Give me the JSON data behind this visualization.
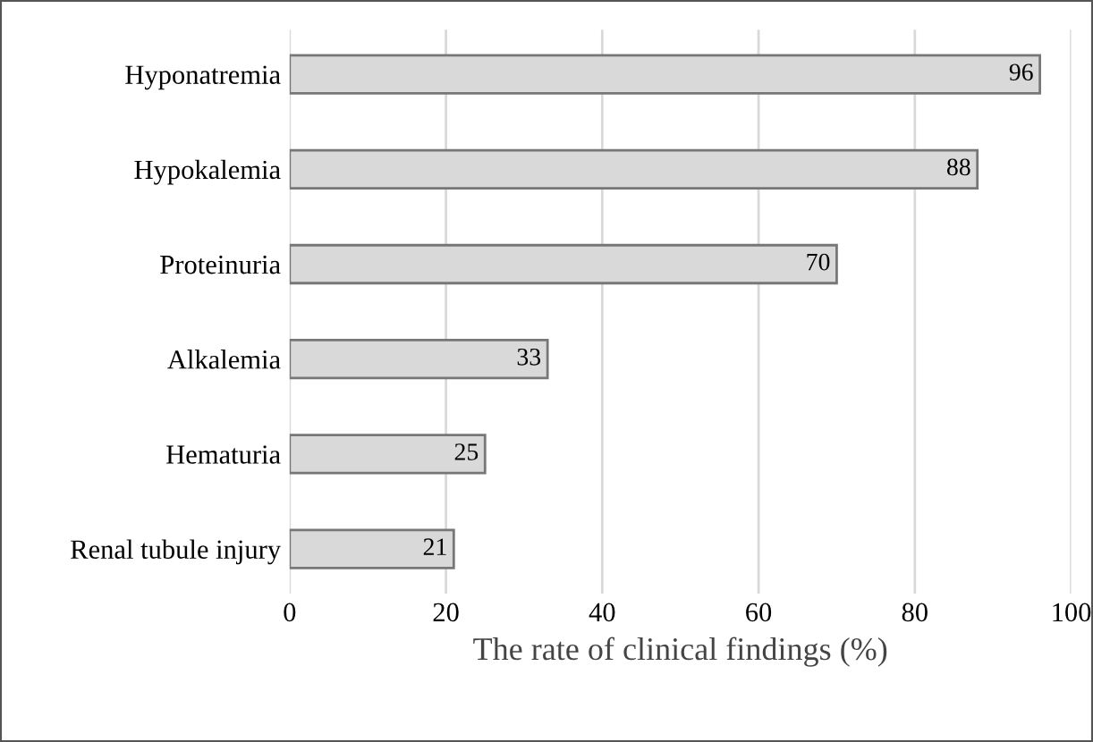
{
  "chart_data": {
    "type": "bar",
    "orientation": "horizontal",
    "categories": [
      "Hyponatremia",
      "Hypokalemia",
      "Proteinuria",
      "Alkalemia",
      "Hematuria",
      "Renal tubule injury"
    ],
    "values": [
      96,
      88,
      70,
      33,
      25,
      21
    ],
    "color": "#d9d9d9",
    "xlabel": "The rate of clinical findings (%)",
    "xlim": [
      0,
      100
    ],
    "xticks": [
      0,
      20,
      40,
      60,
      80,
      100
    ],
    "grid": "x",
    "data_labels": true
  }
}
